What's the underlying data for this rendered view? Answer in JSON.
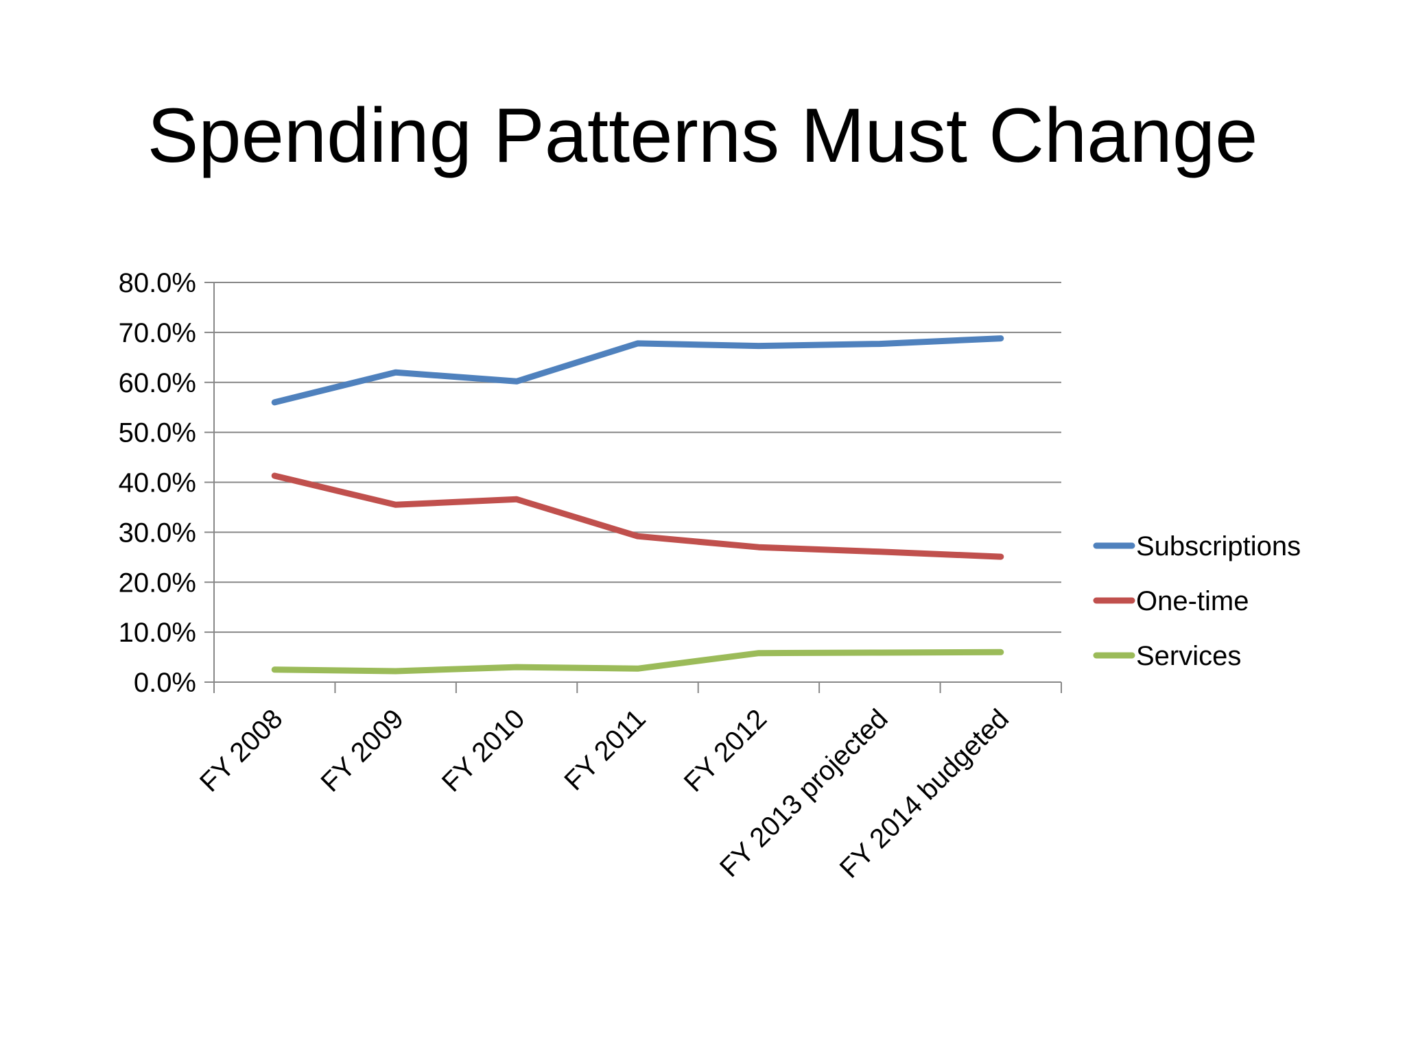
{
  "slide": {
    "title": "Spending Patterns Must Change"
  },
  "chart_data": {
    "type": "line",
    "title": "Spending Patterns Must Change",
    "xlabel": "",
    "ylabel": "",
    "categories": [
      "FY 2008",
      "FY 2009",
      "FY 2010",
      "FY 2011",
      "FY 2012",
      "FY 2013 projected",
      "FY 2014 budgeted"
    ],
    "ylim": [
      0,
      80
    ],
    "ytick_step": 10,
    "ytick_labels": [
      "0.0%",
      "10.0%",
      "20.0%",
      "30.0%",
      "40.0%",
      "50.0%",
      "60.0%",
      "70.0%",
      "80.0%"
    ],
    "grid": true,
    "legend_position": "right",
    "series": [
      {
        "name": "Subscriptions",
        "color": "#4F81BD",
        "values": [
          56.0,
          62.0,
          60.2,
          67.8,
          67.3,
          67.7,
          68.8
        ]
      },
      {
        "name": "One-time",
        "color": "#C0504D",
        "values": [
          41.3,
          35.5,
          36.6,
          29.2,
          27.0,
          26.1,
          25.1
        ]
      },
      {
        "name": "Services",
        "color": "#9BBB59",
        "values": [
          2.5,
          2.2,
          3.0,
          2.7,
          5.8,
          5.9,
          6.0
        ]
      }
    ]
  }
}
